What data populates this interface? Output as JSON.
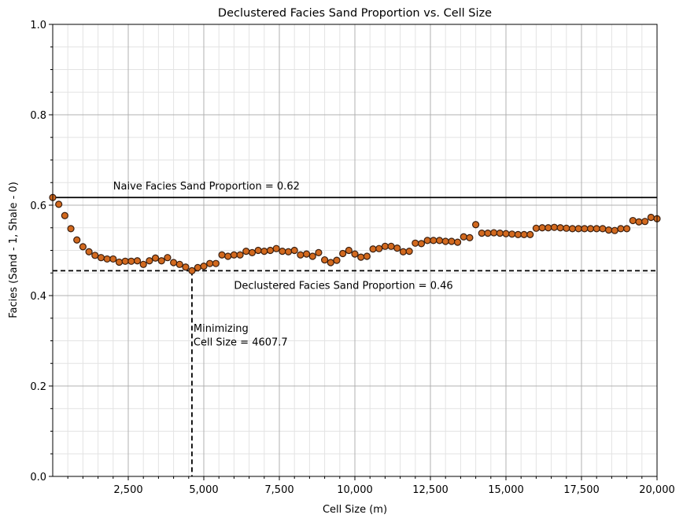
{
  "chart_data": {
    "type": "scatter",
    "title": "Declustered Facies Sand Proportion vs. Cell Size",
    "xlabel": "Cell Size (m)",
    "ylabel": "Facies (Sand - 1, Shale - 0)",
    "xlim": [
      0,
      20000
    ],
    "ylim": [
      0,
      1.0
    ],
    "x_ticks": [
      2500,
      5000,
      7500,
      10000,
      12500,
      15000,
      17500,
      20000
    ],
    "x_tick_labels": [
      "2,500",
      "5,000",
      "7,500",
      "10,000",
      "12,500",
      "15,000",
      "17,500",
      "20,000"
    ],
    "y_ticks": [
      0.0,
      0.2,
      0.4,
      0.6,
      0.8,
      1.0
    ],
    "y_tick_labels": [
      "0.0",
      "0.2",
      "0.4",
      "0.6",
      "0.8",
      "1.0"
    ],
    "grid": true,
    "marker_color": "#d2691e",
    "marker_edge_color": "#3a1f10",
    "naive_proportion": 0.617,
    "declustered_proportion": 0.455,
    "minimizing_cell_size": 4607.7,
    "annotations": {
      "naive": "Naive Facies Sand Proportion = 0.62",
      "declustered": "Declustered Facies Sand Proportion = 0.46",
      "minimizing_line1": "Minimizing",
      "minimizing_line2": "Cell Size = 4607.7"
    },
    "points": [
      [
        0,
        0.617
      ],
      [
        200,
        0.602
      ],
      [
        400,
        0.577
      ],
      [
        600,
        0.548
      ],
      [
        800,
        0.523
      ],
      [
        1000,
        0.508
      ],
      [
        1200,
        0.497
      ],
      [
        1400,
        0.489
      ],
      [
        1600,
        0.484
      ],
      [
        1800,
        0.481
      ],
      [
        2000,
        0.481
      ],
      [
        2200,
        0.474
      ],
      [
        2400,
        0.476
      ],
      [
        2600,
        0.476
      ],
      [
        2800,
        0.477
      ],
      [
        3000,
        0.469
      ],
      [
        3200,
        0.477
      ],
      [
        3400,
        0.483
      ],
      [
        3600,
        0.477
      ],
      [
        3800,
        0.484
      ],
      [
        4000,
        0.473
      ],
      [
        4200,
        0.469
      ],
      [
        4400,
        0.463
      ],
      [
        4607.7,
        0.455
      ],
      [
        4800,
        0.462
      ],
      [
        5000,
        0.465
      ],
      [
        5200,
        0.471
      ],
      [
        5400,
        0.471
      ],
      [
        5600,
        0.49
      ],
      [
        5800,
        0.487
      ],
      [
        6000,
        0.49
      ],
      [
        6200,
        0.49
      ],
      [
        6400,
        0.498
      ],
      [
        6600,
        0.495
      ],
      [
        6800,
        0.5
      ],
      [
        7000,
        0.498
      ],
      [
        7200,
        0.5
      ],
      [
        7400,
        0.504
      ],
      [
        7600,
        0.498
      ],
      [
        7800,
        0.497
      ],
      [
        8000,
        0.5
      ],
      [
        8200,
        0.49
      ],
      [
        8400,
        0.492
      ],
      [
        8600,
        0.487
      ],
      [
        8800,
        0.495
      ],
      [
        9000,
        0.479
      ],
      [
        9200,
        0.473
      ],
      [
        9400,
        0.478
      ],
      [
        9600,
        0.493
      ],
      [
        9800,
        0.5
      ],
      [
        10000,
        0.492
      ],
      [
        10200,
        0.485
      ],
      [
        10400,
        0.487
      ],
      [
        10600,
        0.503
      ],
      [
        10800,
        0.504
      ],
      [
        11000,
        0.509
      ],
      [
        11200,
        0.509
      ],
      [
        11400,
        0.505
      ],
      [
        11600,
        0.497
      ],
      [
        11800,
        0.498
      ],
      [
        12000,
        0.516
      ],
      [
        12200,
        0.515
      ],
      [
        12400,
        0.522
      ],
      [
        12600,
        0.522
      ],
      [
        12800,
        0.522
      ],
      [
        13000,
        0.52
      ],
      [
        13200,
        0.52
      ],
      [
        13400,
        0.518
      ],
      [
        13600,
        0.53
      ],
      [
        13800,
        0.528
      ],
      [
        14000,
        0.557
      ],
      [
        14200,
        0.538
      ],
      [
        14400,
        0.538
      ],
      [
        14600,
        0.539
      ],
      [
        14800,
        0.538
      ],
      [
        15000,
        0.537
      ],
      [
        15200,
        0.536
      ],
      [
        15400,
        0.535
      ],
      [
        15600,
        0.535
      ],
      [
        15800,
        0.535
      ],
      [
        16000,
        0.549
      ],
      [
        16200,
        0.55
      ],
      [
        16400,
        0.55
      ],
      [
        16600,
        0.551
      ],
      [
        16800,
        0.55
      ],
      [
        17000,
        0.549
      ],
      [
        17200,
        0.548
      ],
      [
        17400,
        0.548
      ],
      [
        17600,
        0.548
      ],
      [
        17800,
        0.548
      ],
      [
        18000,
        0.548
      ],
      [
        18200,
        0.548
      ],
      [
        18400,
        0.545
      ],
      [
        18600,
        0.544
      ],
      [
        18800,
        0.548
      ],
      [
        19000,
        0.548
      ],
      [
        19200,
        0.566
      ],
      [
        19400,
        0.563
      ],
      [
        19600,
        0.564
      ],
      [
        19800,
        0.573
      ],
      [
        20000,
        0.57
      ]
    ]
  }
}
